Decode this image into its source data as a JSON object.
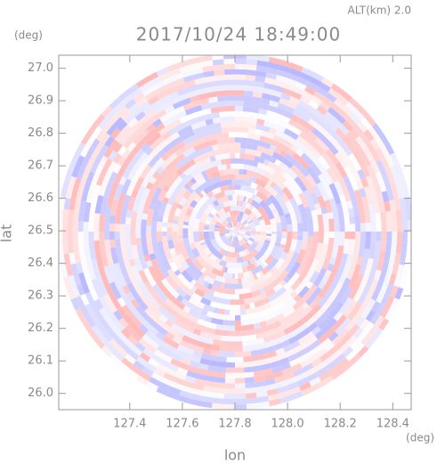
{
  "chart_data": {
    "type": "radar-ppi",
    "title": "2017/10/24 18:49:00",
    "altitude": "ALT(km) 2.0",
    "x_label": "lon",
    "y_label": "lat",
    "x_unit": "(deg)",
    "y_unit": "(deg)",
    "xlim": [
      127.13,
      128.47
    ],
    "ylim": [
      25.95,
      27.04
    ],
    "xticks": [
      127.4,
      127.6,
      127.8,
      {
        "value": 128.0,
        "label": "128.0"
      },
      128.2,
      128.4
    ],
    "yticks": [
      {
        "value": 26.0,
        "label": "26.0"
      },
      26.1,
      26.2,
      26.3,
      26.4,
      26.5,
      26.6,
      26.7,
      26.8,
      26.9,
      {
        "value": 27.0,
        "label": "27.0"
      }
    ]
  }
}
